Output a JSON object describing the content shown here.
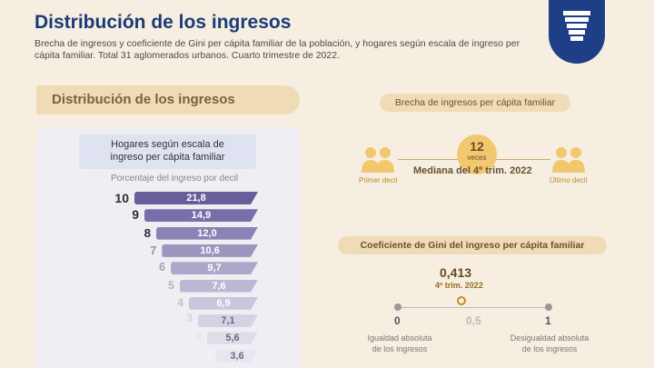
{
  "header": {
    "title": "Distribución de los ingresos",
    "subtitle": "Brecha de ingresos y coeficiente de Gini per cápita familiar de la población, y hogares según escala de ingreso per cápita familiar. Total 31 aglomerados urbanos. Cuarto trimestre de 2022."
  },
  "left": {
    "section_title": "Distribución de los ingresos",
    "box_line1": "Hogares según escala de",
    "box_line2": "ingreso per cápita familiar",
    "pct_label": "Porcentaje del ingreso por decil"
  },
  "chart_data": {
    "type": "bar",
    "categories": [
      "10",
      "9",
      "8",
      "7",
      "6",
      "5",
      "4",
      "3",
      "2",
      "1"
    ],
    "labels": [
      "21,8",
      "14,9",
      "12,0",
      "10,6",
      "9,7",
      "7,6",
      "6,9",
      "7,1",
      "5,6",
      "3,6"
    ],
    "values": [
      21.8,
      14.9,
      12.0,
      10.6,
      9.7,
      7.6,
      6.9,
      7.1,
      5.6,
      3.6
    ],
    "colors": [
      "#6a5d9c",
      "#7a6eaa",
      "#8c82b5",
      "#9e95bf",
      "#aea7c9",
      "#bdb7d3",
      "#cac5dc",
      "#d6d2e4",
      "#e0dde9",
      "#e8e6ef"
    ]
  },
  "brecha": {
    "title": "Brecha de ingresos per cápita familiar",
    "value": "12",
    "unit": "veces",
    "mediana": "Mediana del 4º trim. 2022",
    "left_label": "Primer decil",
    "right_label": "Último decil"
  },
  "gini": {
    "title": "Coeficiente de Gini del ingreso per cápita familiar",
    "value": "0,413",
    "period": "4º trim. 2022",
    "tick0": "0",
    "tick_mid": "0,5",
    "tick1": "1",
    "left_cap1": "Igualdad absoluta",
    "left_cap2": "de los ingresos",
    "right_cap1": "Desigualdad absoluta",
    "right_cap2": "de los ingresos"
  }
}
